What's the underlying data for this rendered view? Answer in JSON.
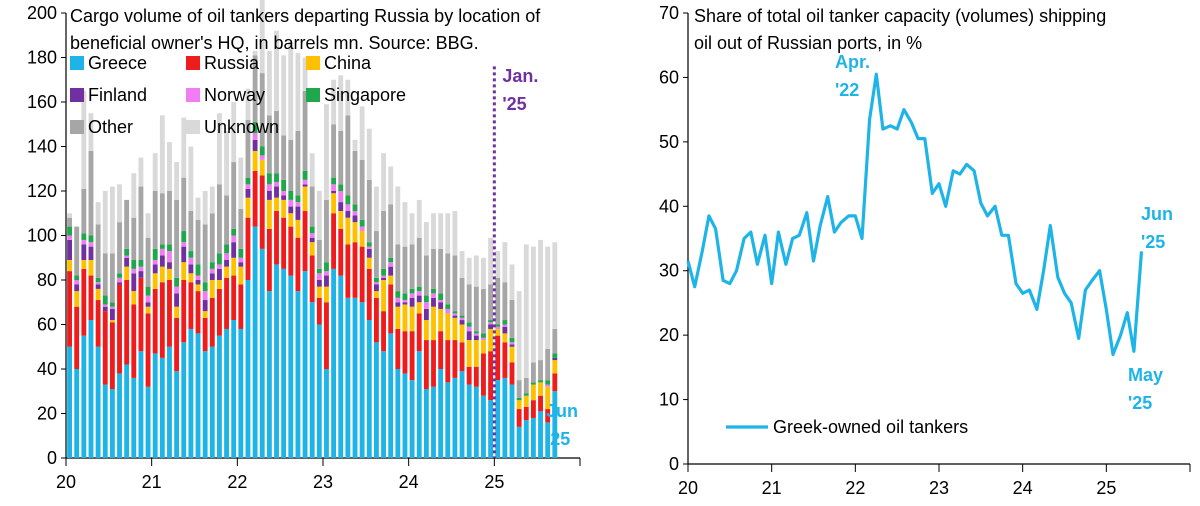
{
  "chart_data": [
    {
      "type": "bar",
      "stacked": true,
      "title": "Cargo volume of oil tankers departing Russia by location of beneficial owner's HQ, in barrels mn. Source: BBG.",
      "title_lines": [
        "Cargo volume of oil tankers departing Russia by location of",
        "beneficial owner's HQ, in barrels mn. Source: BBG."
      ],
      "xlabel": "",
      "ylabel": "",
      "ylim": [
        0,
        200
      ],
      "y_ticks": [
        0,
        20,
        40,
        60,
        80,
        100,
        120,
        140,
        160,
        180,
        200
      ],
      "x_tick_labels": [
        "20",
        "21",
        "22",
        "23",
        "24",
        "25"
      ],
      "x_range": [
        2020.0,
        2026.0
      ],
      "grid": false,
      "legend_placement": "top-left",
      "legend": [
        "Greece",
        "Russia",
        "China",
        "Finland",
        "Norway",
        "Singapore",
        "Other",
        "Unknown"
      ],
      "annotations": [
        {
          "lines": [
            "Jan.",
            "'25"
          ],
          "x": 2025.0,
          "y": 188,
          "color": "#7030a0"
        },
        {
          "lines": [
            "Jun",
            "'25"
          ],
          "x": 2025.5,
          "y": 20,
          "color": "#1fb4e8"
        }
      ],
      "vline": {
        "x": 2025.0,
        "color": "#7030a0",
        "style": "dotted"
      },
      "series_colors": {
        "Greece": "#1fb4e8",
        "Russia": "#ee1c1c",
        "China": "#ffc000",
        "Finland": "#7030a0",
        "Norway": "#f27cf2",
        "Singapore": "#1fa84b",
        "Other": "#a6a6a6",
        "Unknown": "#d9d9d9"
      },
      "x_start": 2020.0,
      "bar_step": 0.0833,
      "series": [
        {
          "name": "Greece",
          "values": [
            50,
            40,
            55,
            62,
            50,
            33,
            31,
            38,
            42,
            36,
            48,
            32,
            47,
            45,
            50,
            39,
            52,
            58,
            56,
            48,
            50,
            55,
            58,
            62,
            58,
            80,
            104,
            94,
            75,
            87,
            85,
            82,
            75,
            84,
            70,
            60,
            40,
            85,
            82,
            72,
            72,
            70,
            62,
            52,
            48,
            56,
            40,
            38,
            35,
            48,
            31,
            32,
            40,
            34,
            36,
            39,
            33,
            32,
            28,
            26,
            35,
            36,
            33,
            14,
            17,
            18,
            21,
            16,
            30
          ]
        },
        {
          "name": "Russia",
          "values": [
            34,
            28,
            30,
            20,
            21,
            33,
            30,
            40,
            38,
            33,
            33,
            33,
            29,
            34,
            30,
            24,
            28,
            21,
            19,
            15,
            22,
            21,
            23,
            20,
            20,
            28,
            25,
            33,
            28,
            24,
            23,
            22,
            24,
            27,
            21,
            12,
            30,
            25,
            21,
            24,
            25,
            25,
            23,
            20,
            18,
            22,
            18,
            19,
            22,
            17,
            22,
            21,
            17,
            19,
            17,
            13,
            8,
            9,
            19,
            22,
            20,
            16,
            10,
            8,
            6,
            8,
            7,
            6,
            8
          ]
        },
        {
          "name": "China",
          "values": [
            5,
            7,
            4,
            7,
            5,
            0,
            1,
            0,
            6,
            6,
            0,
            3,
            7,
            7,
            5,
            5,
            8,
            4,
            3,
            3,
            8,
            4,
            5,
            8,
            8,
            9,
            9,
            7,
            13,
            6,
            8,
            6,
            8,
            11,
            6,
            5,
            7,
            9,
            8,
            12,
            9,
            7,
            5,
            3,
            14,
            4,
            10,
            12,
            11,
            5,
            9,
            15,
            10,
            12,
            10,
            8,
            12,
            12,
            6,
            10,
            3,
            4,
            7,
            4,
            5,
            7,
            6,
            10,
            6
          ]
        },
        {
          "name": "Finland",
          "values": [
            9,
            3,
            7,
            6,
            2,
            2,
            5,
            1,
            4,
            8,
            3,
            2,
            4,
            5,
            3,
            6,
            7,
            4,
            2,
            5,
            3,
            5,
            3,
            7,
            2,
            4,
            5,
            0,
            4,
            5,
            2,
            3,
            6,
            1,
            2,
            3,
            5,
            1,
            4,
            3,
            3,
            0,
            4,
            3,
            1,
            4,
            2,
            1,
            4,
            3,
            5,
            4,
            3,
            0,
            1,
            2,
            4,
            2,
            0,
            2,
            0,
            3,
            1,
            0,
            0,
            0,
            0,
            0,
            1
          ]
        },
        {
          "name": "Norway",
          "values": [
            2,
            2,
            2,
            2,
            1,
            1,
            1,
            2,
            1,
            2,
            2,
            3,
            2,
            3,
            5,
            3,
            2,
            3,
            2,
            4,
            2,
            2,
            3,
            3,
            2,
            2,
            3,
            2,
            3,
            2,
            2,
            3,
            2,
            2,
            2,
            3,
            2,
            3,
            5,
            3,
            2,
            2,
            1,
            1,
            1,
            2,
            2,
            1,
            2,
            2,
            3,
            2,
            1,
            2,
            1,
            1,
            2,
            1,
            1,
            1,
            1,
            1,
            1,
            0,
            0,
            0,
            0,
            1,
            0
          ]
        },
        {
          "name": "Singapore",
          "values": [
            4,
            2,
            3,
            3,
            2,
            4,
            2,
            2,
            3,
            4,
            3,
            4,
            5,
            2,
            3,
            4,
            5,
            3,
            5,
            4,
            3,
            5,
            4,
            3,
            4,
            3,
            5,
            4,
            5,
            4,
            5,
            4,
            3,
            4,
            3,
            2,
            4,
            3,
            3,
            4,
            3,
            3,
            2,
            2,
            3,
            2,
            3,
            3,
            2,
            2,
            3,
            2,
            3,
            2,
            1,
            1,
            2,
            1,
            2,
            1,
            1,
            2,
            2,
            1,
            1,
            1,
            1,
            2,
            2
          ]
        },
        {
          "name": "Other",
          "values": [
            4,
            22,
            20,
            38,
            24,
            19,
            22,
            23,
            22,
            19,
            33,
            22,
            26,
            23,
            24,
            35,
            24,
            18,
            20,
            26,
            22,
            31,
            22,
            30,
            18,
            26,
            30,
            33,
            26,
            28,
            20,
            23,
            29,
            36,
            18,
            13,
            28,
            24,
            24,
            36,
            24,
            27,
            28,
            21,
            26,
            24,
            21,
            21,
            20,
            22,
            18,
            18,
            20,
            23,
            25,
            17,
            17,
            20,
            20,
            16,
            21,
            17,
            17,
            8,
            7,
            9,
            9,
            14,
            11
          ]
        },
        {
          "name": "Unknown",
          "values": [
            2,
            0,
            44,
            17,
            10,
            28,
            30,
            17,
            0,
            20,
            13,
            11,
            17,
            35,
            22,
            17,
            27,
            29,
            10,
            15,
            12,
            32,
            29,
            27,
            23,
            14,
            2,
            33,
            29,
            36,
            36,
            44,
            35,
            15,
            15,
            22,
            43,
            20,
            25,
            16,
            5,
            24,
            23,
            20,
            26,
            17,
            26,
            20,
            14,
            17,
            15,
            16,
            16,
            18,
            20,
            12,
            12,
            14,
            14,
            21,
            12,
            18,
            16,
            40,
            60,
            52,
            54,
            46,
            39
          ]
        }
      ]
    },
    {
      "type": "line",
      "title": "Share of total oil tanker capacity (volumes) shipping oil out of Russian ports, in %",
      "title_lines": [
        "Share of total oil tanker capacity (volumes) shipping",
        "oil out of Russian ports, in %"
      ],
      "xlabel": "",
      "ylabel": "",
      "ylim": [
        0,
        70
      ],
      "y_ticks": [
        0,
        10,
        20,
        30,
        40,
        50,
        60,
        70
      ],
      "x_tick_labels": [
        "20",
        "21",
        "22",
        "23",
        "24",
        "25"
      ],
      "x_range": [
        2020.0,
        2026.0
      ],
      "grid": false,
      "legend_placement": "bottom-left",
      "annotations": [
        {
          "lines": [
            "Apr.",
            "'22"
          ],
          "x": 2022.25,
          "y": 61,
          "color": "#1fb4e8"
        },
        {
          "lines": [
            "Jun",
            "'25"
          ],
          "x": 2025.5,
          "y": 33,
          "color": "#1fb4e8"
        },
        {
          "lines": [
            "May",
            "'25"
          ],
          "x": 2025.4,
          "y": 18,
          "color": "#1fb4e8"
        }
      ],
      "series": [
        {
          "name": "Greek-owned oil tankers",
          "color": "#1fb4e8",
          "x": [
            2020.0,
            2020.08,
            2020.17,
            2020.25,
            2020.33,
            2020.42,
            2020.5,
            2020.58,
            2020.67,
            2020.75,
            2020.83,
            2020.92,
            2021.0,
            2021.08,
            2021.17,
            2021.25,
            2021.33,
            2021.42,
            2021.5,
            2021.58,
            2021.67,
            2021.75,
            2021.83,
            2021.92,
            2022.0,
            2022.08,
            2022.17,
            2022.25,
            2022.33,
            2022.42,
            2022.5,
            2022.58,
            2022.67,
            2022.75,
            2022.83,
            2022.92,
            2023.0,
            2023.08,
            2023.17,
            2023.25,
            2023.33,
            2023.42,
            2023.5,
            2023.58,
            2023.67,
            2023.75,
            2023.83,
            2023.92,
            2024.0,
            2024.08,
            2024.17,
            2024.25,
            2024.33,
            2024.42,
            2024.5,
            2024.58,
            2024.67,
            2024.75,
            2024.83,
            2024.92,
            2025.0,
            2025.08,
            2025.17,
            2025.25,
            2025.33,
            2025.42
          ],
          "values": [
            31.5,
            27.5,
            33,
            38.5,
            36.5,
            28.5,
            28,
            30,
            35,
            36,
            31,
            35.5,
            28,
            36,
            31,
            35,
            35.5,
            39,
            31.5,
            37,
            41.5,
            36,
            37.5,
            38.5,
            38.5,
            35,
            53.5,
            60.5,
            52,
            52.5,
            52,
            55,
            53,
            50.5,
            50.5,
            42,
            43.5,
            40,
            45.5,
            45,
            46.5,
            45.5,
            40.5,
            38.5,
            40,
            35.5,
            35.5,
            28,
            26.5,
            27,
            24,
            30,
            37,
            29,
            26.5,
            25,
            19.5,
            27,
            28.5,
            30,
            24,
            17,
            20,
            23.5,
            17.5,
            33
          ]
        }
      ]
    }
  ]
}
